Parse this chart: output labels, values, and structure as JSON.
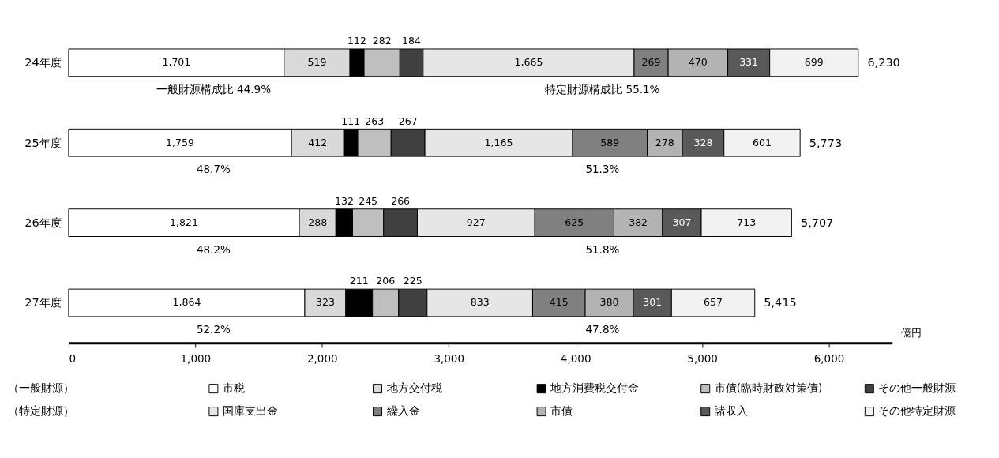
{
  "chart_data": {
    "type": "bar",
    "orientation": "horizontal",
    "stacked": true,
    "xlabel": "億円",
    "categories": [
      "24年度",
      "25年度",
      "26年度",
      "27年度"
    ],
    "xlim": [
      0,
      6500
    ],
    "xticks": [
      0,
      {
        "value": 1000,
        "label": "1,000"
      },
      {
        "value": 2000,
        "label": "2,000"
      },
      {
        "value": 3000,
        "label": "3,000"
      },
      {
        "value": 4000,
        "label": "4,000"
      },
      {
        "value": 5000,
        "label": "5,000"
      },
      {
        "value": 6000,
        "label": "6,000"
      }
    ],
    "grid": false,
    "legend": "bottom",
    "series": [
      {
        "name": "市税",
        "color": "#ffffff",
        "values": [
          1701,
          1759,
          1821,
          1864
        ],
        "value_labels": [
          "1,701",
          "1,759",
          "1,821",
          "1,864"
        ]
      },
      {
        "name": "地方交付税",
        "color": "#d9d9d9",
        "values": [
          519,
          412,
          288,
          323
        ],
        "value_labels": [
          "519",
          "412",
          "288",
          "323"
        ]
      },
      {
        "name": "地方消費税交付金",
        "color": "#000000",
        "values": [
          112,
          111,
          132,
          211
        ],
        "value_labels": [
          "112",
          "111",
          "132",
          "211"
        ]
      },
      {
        "name": "市債(臨時財政対策債)",
        "color": "#bfbfbf",
        "values": [
          282,
          263,
          245,
          206
        ],
        "value_labels": [
          "282",
          "263",
          "245",
          "206"
        ]
      },
      {
        "name": "その他一般財源",
        "color": "#404040",
        "values": [
          184,
          267,
          266,
          225
        ],
        "value_labels": [
          "184",
          "267",
          "266",
          "225"
        ]
      },
      {
        "name": "国庫支出金",
        "color": "#e6e6e6",
        "values": [
          1665,
          1165,
          927,
          833
        ],
        "value_labels": [
          "1,665",
          "1,165",
          "927",
          "833"
        ]
      },
      {
        "name": "繰入金",
        "color": "#808080",
        "values": [
          269,
          589,
          625,
          415
        ],
        "value_labels": [
          "269",
          "589",
          "625",
          "415"
        ]
      },
      {
        "name": "市債",
        "color": "#b3b3b3",
        "values": [
          470,
          278,
          382,
          380
        ],
        "value_labels": [
          "470",
          "278",
          "382",
          "380"
        ]
      },
      {
        "name": "諸収入",
        "color": "#595959",
        "values": [
          331,
          328,
          307,
          301
        ],
        "value_labels": [
          "331",
          "328",
          "307",
          "301"
        ]
      },
      {
        "name": "その他特定財源",
        "color": "#f2f2f2",
        "values": [
          699,
          601,
          713,
          657
        ],
        "value_labels": [
          "699",
          "601",
          "713",
          "657"
        ]
      }
    ],
    "totals": [
      "6,230",
      "5,773",
      "5,707",
      "5,415"
    ],
    "annotations": [
      "一般財源構成比  44.9%",
      "特定財源構成比 55.1%",
      "48.7%",
      "51.3%",
      "48.2%",
      "51.8%",
      "52.2%",
      "47.8%",
      "（一般財源）",
      "（特定財源）"
    ]
  }
}
